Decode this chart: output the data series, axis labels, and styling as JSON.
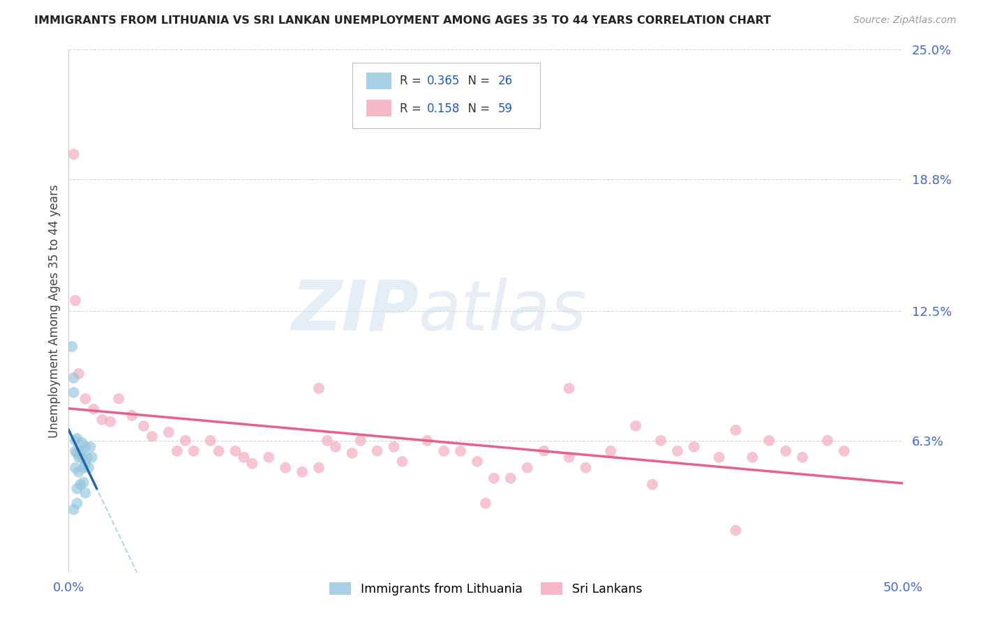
{
  "title": "IMMIGRANTS FROM LITHUANIA VS SRI LANKAN UNEMPLOYMENT AMONG AGES 35 TO 44 YEARS CORRELATION CHART",
  "source": "Source: ZipAtlas.com",
  "ylabel": "Unemployment Among Ages 35 to 44 years",
  "xlim": [
    0.0,
    0.5
  ],
  "ylim": [
    0.0,
    0.25
  ],
  "xtick_values": [
    0.0,
    0.1,
    0.2,
    0.3,
    0.4,
    0.5
  ],
  "xticklabels": [
    "0.0%",
    "",
    "",
    "",
    "",
    "50.0%"
  ],
  "ytick_values_right": [
    0.25,
    0.188,
    0.125,
    0.063,
    0.0
  ],
  "ytick_labels_right": [
    "25.0%",
    "18.8%",
    "12.5%",
    "6.3%",
    ""
  ],
  "legend1_label": "Immigrants from Lithuania",
  "legend2_label": "Sri Lankans",
  "R_blue": "0.365",
  "N_blue": "26",
  "R_pink": "0.158",
  "N_pink": "59",
  "watermark_zip": "ZIP",
  "watermark_atlas": "atlas",
  "blue_scatter_color": "#92c5de",
  "pink_scatter_color": "#f4a6b8",
  "blue_line_color": "#2166ac",
  "blue_dash_color": "#92c5de",
  "pink_line_color": "#e8608a",
  "legend_text_color": "#333333",
  "legend_r_color": "#1a5cc8",
  "axis_tick_color": "#4466dd",
  "background_color": "#ffffff",
  "grid_color": "#cccccc",
  "blue_x": [
    0.002,
    0.003,
    0.003,
    0.004,
    0.004,
    0.004,
    0.005,
    0.005,
    0.005,
    0.006,
    0.006,
    0.007,
    0.007,
    0.008,
    0.008,
    0.009,
    0.009,
    0.01,
    0.01,
    0.01,
    0.011,
    0.012,
    0.013,
    0.014,
    0.003,
    0.005
  ],
  "blue_y": [
    0.108,
    0.093,
    0.086,
    0.063,
    0.058,
    0.05,
    0.064,
    0.057,
    0.04,
    0.055,
    0.048,
    0.058,
    0.042,
    0.062,
    0.055,
    0.05,
    0.043,
    0.06,
    0.052,
    0.038,
    0.055,
    0.05,
    0.06,
    0.055,
    0.03,
    0.033
  ],
  "pink_x": [
    0.003,
    0.004,
    0.006,
    0.01,
    0.015,
    0.02,
    0.025,
    0.03,
    0.038,
    0.045,
    0.05,
    0.06,
    0.065,
    0.07,
    0.075,
    0.085,
    0.09,
    0.1,
    0.105,
    0.11,
    0.12,
    0.13,
    0.14,
    0.15,
    0.155,
    0.16,
    0.17,
    0.175,
    0.185,
    0.195,
    0.2,
    0.215,
    0.225,
    0.235,
    0.245,
    0.255,
    0.265,
    0.275,
    0.285,
    0.3,
    0.31,
    0.325,
    0.34,
    0.355,
    0.365,
    0.375,
    0.39,
    0.4,
    0.41,
    0.42,
    0.43,
    0.44,
    0.455,
    0.465,
    0.3,
    0.15,
    0.25,
    0.4,
    0.35
  ],
  "pink_y": [
    0.2,
    0.13,
    0.095,
    0.083,
    0.078,
    0.073,
    0.072,
    0.083,
    0.075,
    0.07,
    0.065,
    0.067,
    0.058,
    0.063,
    0.058,
    0.063,
    0.058,
    0.058,
    0.055,
    0.052,
    0.055,
    0.05,
    0.048,
    0.05,
    0.063,
    0.06,
    0.057,
    0.063,
    0.058,
    0.06,
    0.053,
    0.063,
    0.058,
    0.058,
    0.053,
    0.045,
    0.045,
    0.05,
    0.058,
    0.055,
    0.05,
    0.058,
    0.07,
    0.063,
    0.058,
    0.06,
    0.055,
    0.068,
    0.055,
    0.063,
    0.058,
    0.055,
    0.063,
    0.058,
    0.088,
    0.088,
    0.033,
    0.02,
    0.042
  ]
}
